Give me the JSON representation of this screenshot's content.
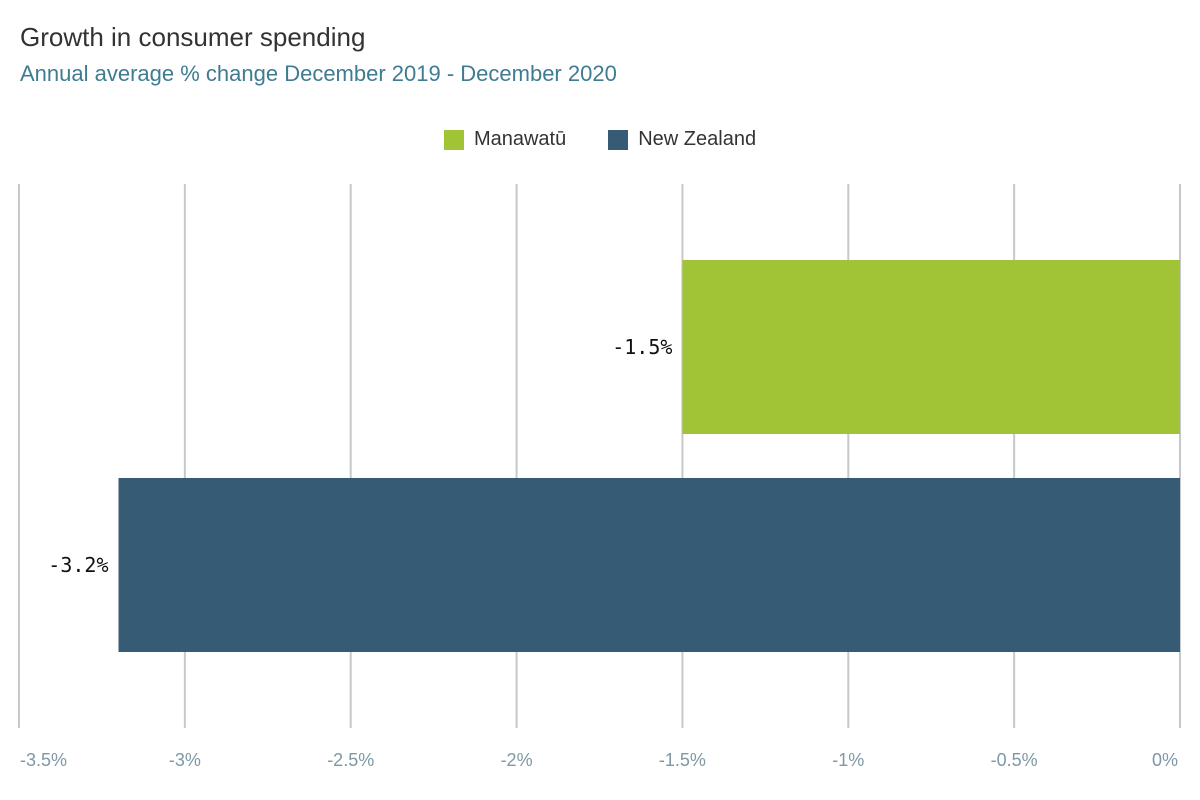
{
  "chart_data": {
    "type": "bar",
    "orientation": "horizontal",
    "title": "Growth in consumer spending",
    "subtitle": "Annual average % change December 2019 - December 2020",
    "categories": [
      "Manawatū",
      "New Zealand"
    ],
    "values": [
      -1.5,
      -3.2
    ],
    "data_labels": [
      "-1.5%",
      "-3.2%"
    ],
    "colors": [
      "#a1c336",
      "#355c74"
    ],
    "xlim": [
      -3.5,
      0
    ],
    "ticks": [
      -3.5,
      -3,
      -2.5,
      -2,
      -1.5,
      -1,
      -0.5,
      0
    ],
    "tick_labels": [
      "-3.5%",
      "-3%",
      "-2.5%",
      "-2%",
      "-1.5%",
      "-1%",
      "-0.5%",
      "0%"
    ],
    "grid": true,
    "legend_position": "top-center",
    "legend": [
      {
        "label": "Manawatū",
        "color": "#a1c336"
      },
      {
        "label": "New Zealand",
        "color": "#355c74"
      }
    ]
  }
}
